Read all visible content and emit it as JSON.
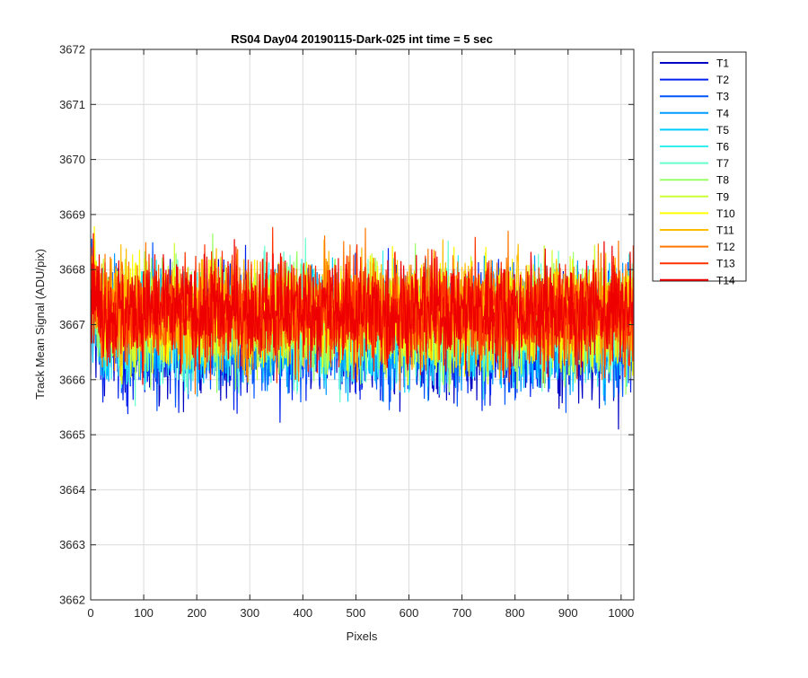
{
  "chart_data": {
    "type": "line",
    "title": "RS04 Day04 20190115-Dark-025 int time = 5 sec",
    "xlabel": "Pixels",
    "ylabel": "Track Mean Signal (ADU/pix)",
    "xlim": [
      0,
      1024
    ],
    "ylim": [
      3662,
      3672
    ],
    "xticks": [
      0,
      100,
      200,
      300,
      400,
      500,
      600,
      700,
      800,
      900,
      1000
    ],
    "yticks": [
      3662,
      3663,
      3664,
      3665,
      3666,
      3667,
      3668,
      3669,
      3670,
      3671,
      3672
    ],
    "grid": true,
    "legend_position": "outside-top-right",
    "noise": {
      "n_points_per_series": 1024,
      "description_note": null
    },
    "series": [
      {
        "name": "T1",
        "color": "#0000c2",
        "mean": 3666.75,
        "std": 0.95
      },
      {
        "name": "T2",
        "color": "#0022ee",
        "mean": 3666.8,
        "std": 0.95
      },
      {
        "name": "T3",
        "color": "#0055ff",
        "mean": 3666.85,
        "std": 0.93
      },
      {
        "name": "T4",
        "color": "#0099ff",
        "mean": 3666.9,
        "std": 0.92
      },
      {
        "name": "T5",
        "color": "#00ccff",
        "mean": 3666.95,
        "std": 0.9
      },
      {
        "name": "T6",
        "color": "#33eeee",
        "mean": 3667.0,
        "std": 0.9
      },
      {
        "name": "T7",
        "color": "#66ffcc",
        "mean": 3667.05,
        "std": 0.88
      },
      {
        "name": "T8",
        "color": "#99ff66",
        "mean": 3667.1,
        "std": 0.88
      },
      {
        "name": "T9",
        "color": "#ccff33",
        "mean": 3667.15,
        "std": 0.88
      },
      {
        "name": "T10",
        "color": "#ffff00",
        "mean": 3667.2,
        "std": 0.87
      },
      {
        "name": "T11",
        "color": "#ffbb00",
        "mean": 3667.25,
        "std": 0.87
      },
      {
        "name": "T12",
        "color": "#ff7700",
        "mean": 3667.25,
        "std": 0.87
      },
      {
        "name": "T13",
        "color": "#ff3300",
        "mean": 3667.25,
        "std": 0.86
      },
      {
        "name": "T14",
        "color": "#ee0000",
        "mean": 3667.25,
        "std": 0.86
      }
    ]
  }
}
